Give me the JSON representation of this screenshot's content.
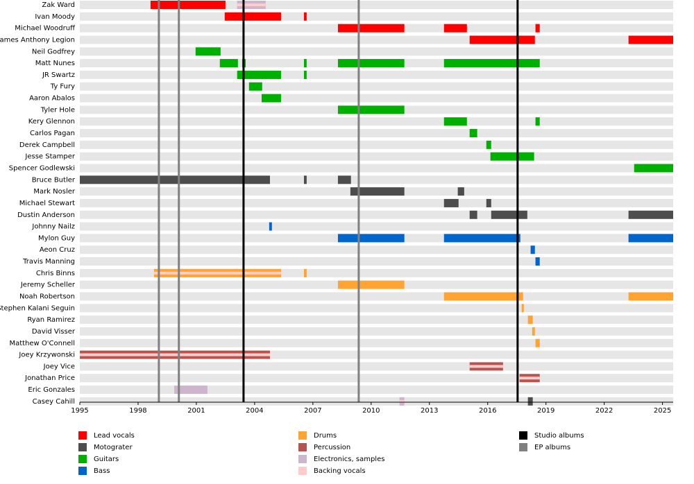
{
  "chart_data": {
    "type": "timeline",
    "categories": [
      "Zak Ward",
      "Ivan Moody",
      "Michael Woodruff",
      "James Anthony Legion",
      "Neil Godfrey",
      "Matt Nunes",
      "JR Swartz",
      "Ty Fury",
      "Aaron Abalos",
      "Tyler Hole",
      "Kery Glennon",
      "Carlos Pagan",
      "Derek Campbell",
      "Jesse Stamper",
      "Spencer Godlewski",
      "Bruce Butler",
      "Mark Nosler",
      "Michael Stewart",
      "Dustin Anderson",
      "Johnny Nailz",
      "Mylon Guy",
      "Aeon Cruz",
      "Travis Manning",
      "Chris Binns",
      "Jeremy Scheller",
      "Noah Robertson",
      "Stephen Kalani Seguin",
      "Ryan Ramirez",
      "David Visser",
      "Matthew O'Connell",
      "Joey Krzywonski",
      "Joey Vice",
      "Jonathan Price",
      "Eric Gonzales",
      "Casey Cahill"
    ],
    "xlim": [
      1995,
      2025.55
    ],
    "xticks": [
      1995,
      1998,
      2001,
      2004,
      2007,
      2010,
      2013,
      2016,
      2019,
      2022,
      2025
    ],
    "series": [
      {
        "name": "Lead vocals",
        "color": "#ff0000",
        "values": [
          [
            [
              1998.64,
              2002.5
            ]
          ],
          [
            [
              2002.46,
              2005.36
            ],
            [
              2006.54,
              2006.68
            ]
          ],
          [
            [
              2008.29,
              2011.71
            ],
            [
              2013.75,
              2014.93
            ],
            [
              2018.46,
              2018.68
            ]
          ],
          [
            [
              2015.07,
              2018.43
            ],
            [
              2023.25,
              2025.55
            ]
          ],
          null,
          null,
          null,
          null,
          null,
          null,
          null,
          null,
          null,
          null,
          null,
          null,
          null,
          null,
          null,
          null,
          null,
          null,
          null,
          null,
          null,
          null,
          null,
          null,
          null,
          null,
          null,
          null,
          null,
          null,
          null
        ]
      },
      {
        "name": "Motograter",
        "color": "#4d4d4d",
        "values": [
          null,
          null,
          null,
          null,
          null,
          null,
          null,
          null,
          null,
          null,
          null,
          null,
          null,
          null,
          null,
          [
            [
              1995,
              2004.79
            ],
            [
              2006.54,
              2006.68
            ],
            [
              2008.29,
              2008.96
            ]
          ],
          [
            [
              2008.93,
              2011.71
            ],
            [
              2014.46,
              2014.79
            ]
          ],
          [
            [
              2013.75,
              2014.5
            ],
            [
              2015.93,
              2016.18
            ]
          ],
          [
            [
              2015.07,
              2015.46
            ],
            [
              2016.18,
              2018.04
            ],
            [
              2023.25,
              2025.55
            ]
          ],
          null,
          null,
          null,
          null,
          null,
          null,
          null,
          null,
          null,
          null,
          null,
          null,
          null,
          null,
          null,
          [
            [
              2018.07,
              2018.32
            ]
          ]
        ]
      },
      {
        "name": "Guitars",
        "color": "#00b000",
        "values": [
          null,
          null,
          null,
          null,
          [
            [
              2000.96,
              2002.25
            ]
          ],
          [
            [
              2002.21,
              2003.14
            ],
            [
              2003.36,
              2003.54
            ],
            [
              2006.54,
              2006.68
            ],
            [
              2008.29,
              2011.71
            ],
            [
              2013.75,
              2018.68
            ]
          ],
          [
            [
              2003.1,
              2005.36
            ],
            [
              2006.54,
              2006.68
            ]
          ],
          [
            [
              2003.71,
              2004.39
            ]
          ],
          [
            [
              2004.36,
              2005.36
            ]
          ],
          [
            [
              2008.29,
              2011.71
            ]
          ],
          [
            [
              2013.75,
              2014.93
            ],
            [
              2018.46,
              2018.68
            ]
          ],
          [
            [
              2015.07,
              2015.46
            ]
          ],
          [
            [
              2015.93,
              2016.18
            ]
          ],
          [
            [
              2016.14,
              2018.39
            ]
          ],
          [
            [
              2023.54,
              2025.55
            ]
          ],
          null,
          null,
          null,
          null,
          null,
          null,
          null,
          null,
          null,
          null,
          null,
          null,
          null,
          null,
          null,
          null,
          null,
          null,
          null,
          null
        ]
      },
      {
        "name": "Bass",
        "color": "#0066cc",
        "values": [
          null,
          null,
          null,
          null,
          null,
          null,
          null,
          null,
          null,
          null,
          null,
          null,
          null,
          null,
          null,
          null,
          null,
          null,
          null,
          [
            [
              2004.75,
              2004.89
            ]
          ],
          [
            [
              2008.29,
              2011.71
            ],
            [
              2013.75,
              2017.68
            ],
            [
              2023.25,
              2025.55
            ]
          ],
          [
            [
              2018.21,
              2018.43
            ]
          ],
          [
            [
              2018.46,
              2018.68
            ]
          ],
          null,
          null,
          null,
          null,
          null,
          null,
          null,
          null,
          null,
          null,
          null,
          null
        ]
      },
      {
        "name": "Drums",
        "color": "#ffa333",
        "values": [
          null,
          null,
          null,
          null,
          null,
          null,
          null,
          null,
          null,
          null,
          null,
          null,
          null,
          null,
          null,
          null,
          null,
          null,
          null,
          null,
          null,
          null,
          null,
          [
            [
              1998.82,
              2005.36
            ],
            [
              2006.54,
              2006.68
            ]
          ],
          [
            [
              2008.29,
              2011.71
            ]
          ],
          [
            [
              2013.75,
              2017.82
            ],
            [
              2023.25,
              2025.55
            ]
          ],
          [
            [
              2017.75,
              2017.86
            ]
          ],
          [
            [
              2018.07,
              2018.32
            ]
          ],
          [
            [
              2018.29,
              2018.43
            ]
          ],
          [
            [
              2018.46,
              2018.68
            ]
          ],
          null,
          null,
          null,
          null,
          null
        ]
      },
      {
        "name": "Percussion",
        "color": "#b85450",
        "values": [
          null,
          null,
          null,
          null,
          null,
          null,
          null,
          null,
          null,
          null,
          null,
          null,
          null,
          null,
          null,
          null,
          null,
          null,
          null,
          null,
          null,
          null,
          null,
          null,
          null,
          null,
          null,
          null,
          null,
          null,
          [
            [
              1995,
              2004.79
            ]
          ],
          [
            [
              2015.07,
              2016.79
            ]
          ],
          [
            [
              2017.64,
              2018.68
            ]
          ],
          null,
          null
        ]
      },
      {
        "name": "Electronics, samples",
        "color": "#cdb5cd",
        "values": [
          [
            [
              2003.1,
              2004.57
            ]
          ],
          null,
          null,
          null,
          null,
          null,
          null,
          null,
          null,
          null,
          null,
          null,
          null,
          null,
          null,
          null,
          null,
          null,
          null,
          null,
          null,
          null,
          null,
          null,
          null,
          null,
          null,
          null,
          null,
          null,
          null,
          null,
          null,
          [
            [
              1999.86,
              2001.57
            ]
          ],
          [
            [
              2011.46,
              2011.71
            ]
          ]
        ]
      },
      {
        "name": "Backing vocals",
        "color": "#ffcccc",
        "values": [
          [
            [
              2003.1,
              2004.57
            ]
          ],
          null,
          null,
          null,
          null,
          null,
          null,
          null,
          null,
          null,
          null,
          null,
          null,
          null,
          null,
          null,
          null,
          null,
          null,
          null,
          null,
          null,
          null,
          [
            [
              1998.82,
              2005.36
            ]
          ],
          null,
          null,
          null,
          null,
          null,
          null,
          [
            [
              1995,
              2004.79
            ]
          ],
          [
            [
              2015.07,
              2016.79
            ]
          ],
          [
            [
              2017.64,
              2018.68
            ]
          ],
          null,
          [
            [
              2011.46,
              2011.71
            ]
          ]
        ]
      }
    ],
    "lines": [
      {
        "name": "Studio albums",
        "color": "#000000",
        "x": [
          2003.43,
          2017.54
        ]
      },
      {
        "name": "EP albums",
        "color": "#808080",
        "x": [
          1999.07,
          2000.1,
          2009.36
        ]
      }
    ]
  }
}
